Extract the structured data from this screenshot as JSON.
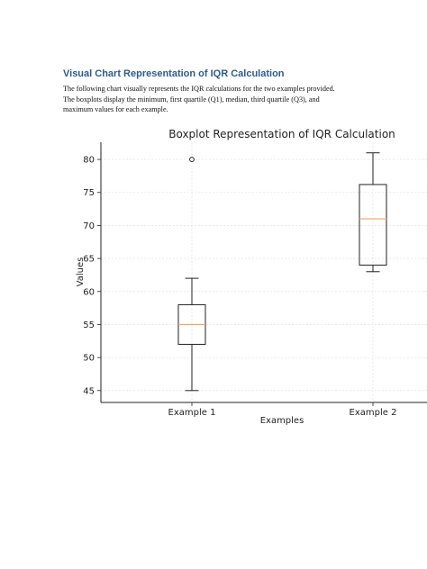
{
  "document": {
    "heading": "Visual Chart Representation of IQR Calculation",
    "paragraph_lines": [
      "The following chart visually represents the IQR calculations for the two examples provided.",
      "The boxplots display the minimum, first quartile (Q1), median, third quartile (Q3), and",
      "maximum values for each example."
    ]
  },
  "chart_data": {
    "type": "boxplot",
    "title": "Boxplot Representation of IQR Calculation",
    "xlabel": "Examples",
    "ylabel": "Values",
    "categories": [
      "Example 1",
      "Example 2"
    ],
    "yticks": [
      45,
      50,
      55,
      60,
      65,
      70,
      75,
      80
    ],
    "ylim": [
      43.2,
      82.6
    ],
    "grid": true,
    "boxes": [
      {
        "name": "Example 1",
        "whisker_low": 45,
        "q1": 52,
        "median": 55,
        "q3": 58,
        "whisker_high": 62,
        "outliers": [
          80
        ]
      },
      {
        "name": "Example 2",
        "whisker_low": 63,
        "q1": 64,
        "median": 71,
        "q3": 76.2,
        "whisker_high": 81,
        "outliers": []
      }
    ],
    "colors": {
      "median": "#F5A267",
      "box": "#222222",
      "grid": "#DDDDDD"
    }
  }
}
